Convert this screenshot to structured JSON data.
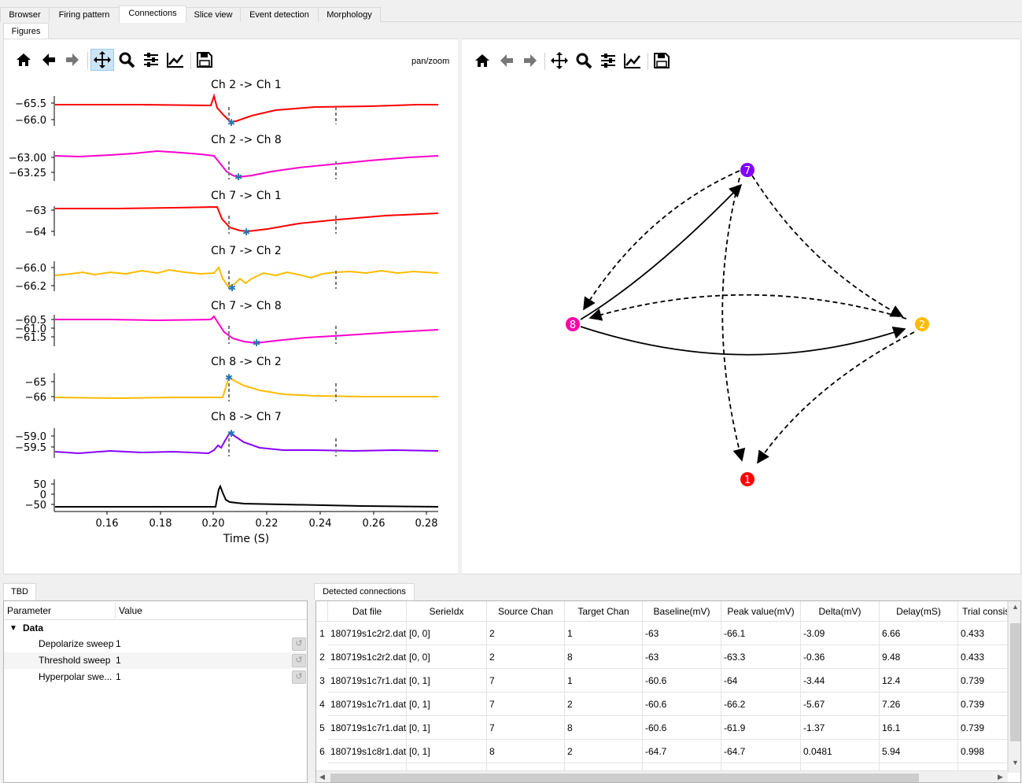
{
  "tabs": [
    "Browser",
    "Firing pattern",
    "Connections",
    "Slice view",
    "Event detection",
    "Morphology"
  ],
  "active_tab": "Connections",
  "subtabs": [
    "Figures"
  ],
  "left_toolbar": {
    "mode_label": "pan/zoom",
    "active_tool": "pan"
  },
  "traces": [
    {
      "title": "Ch 2 -> Ch 1",
      "ticks": [
        "−65.5",
        "−66.0"
      ],
      "color": "#ff0000"
    },
    {
      "title": "Ch 2 -> Ch 8",
      "ticks": [
        "−63.00",
        "−63.25"
      ],
      "color": "#ff00cc"
    },
    {
      "title": "Ch 7 -> Ch 1",
      "ticks": [
        "−63",
        "−64"
      ],
      "color": "#ff0000"
    },
    {
      "title": "Ch 7 -> Ch 2",
      "ticks": [
        "−66.0",
        "−66.2"
      ],
      "color": "#ffbb00"
    },
    {
      "title": "Ch 7 -> Ch 8",
      "ticks": [
        "−60.5",
        "−61.0",
        "−61.5"
      ],
      "color": "#ff00cc"
    },
    {
      "title": "Ch 8 -> Ch 2",
      "ticks": [
        "−65",
        "−66"
      ],
      "color": "#ffbb00"
    },
    {
      "title": "Ch 8 -> Ch 7",
      "ticks": [
        "−59.0",
        "−59.5"
      ],
      "color": "#8800ff"
    },
    {
      "title": "",
      "ticks": [
        "50",
        "0",
        "−50"
      ],
      "color": "#000000"
    }
  ],
  "x_axis": {
    "label": "Time (S)",
    "ticks": [
      "0.16",
      "0.18",
      "0.20",
      "0.22",
      "0.24",
      "0.26",
      "0.28"
    ]
  },
  "network": {
    "nodes": [
      {
        "id": "7",
        "color": "#7f00ff"
      },
      {
        "id": "8",
        "color": "#ff00aa"
      },
      {
        "id": "2",
        "color": "#ffbb00"
      },
      {
        "id": "1",
        "color": "#ff0000"
      }
    ],
    "edges": [
      {
        "from": "2",
        "to": "1",
        "style": "dashed"
      },
      {
        "from": "2",
        "to": "8",
        "style": "dashed"
      },
      {
        "from": "7",
        "to": "1",
        "style": "dashed"
      },
      {
        "from": "7",
        "to": "2",
        "style": "dashed"
      },
      {
        "from": "7",
        "to": "8",
        "style": "dashed"
      },
      {
        "from": "8",
        "to": "2",
        "style": "solid"
      },
      {
        "from": "8",
        "to": "7",
        "style": "solid"
      }
    ]
  },
  "param_panel": {
    "tab": "TBD",
    "headers": [
      "Parameter",
      "Value"
    ],
    "group": "Data",
    "rows": [
      {
        "name": "Depolarize sweep",
        "value": "1"
      },
      {
        "name": "Threshold sweep",
        "value": "1"
      },
      {
        "name": "Hyperpolar swe...",
        "value": "1"
      }
    ]
  },
  "connections": {
    "tab": "Detected connections",
    "headers": [
      "Dat file",
      "SerieIdx",
      "Source Chan",
      "Target Chan",
      "Baseline(mV)",
      "Peak value(mV)",
      "Delta(mV)",
      "Delay(mS)",
      "Trial consis"
    ],
    "rows": [
      [
        "1",
        "180719s1c2r2.dat",
        "[0, 0]",
        "2",
        "1",
        "-63",
        "-66.1",
        "-3.09",
        "6.66",
        "0.433"
      ],
      [
        "2",
        "180719s1c2r2.dat",
        "[0, 0]",
        "2",
        "8",
        "-63",
        "-63.3",
        "-0.36",
        "9.48",
        "0.433"
      ],
      [
        "3",
        "180719s1c7r1.dat",
        "[0, 1]",
        "7",
        "1",
        "-60.6",
        "-64",
        "-3.44",
        "12.4",
        "0.739"
      ],
      [
        "4",
        "180719s1c7r1.dat",
        "[0, 1]",
        "7",
        "2",
        "-60.6",
        "-66.2",
        "-5.67",
        "7.26",
        "0.739"
      ],
      [
        "5",
        "180719s1c7r1.dat",
        "[0, 1]",
        "7",
        "8",
        "-60.6",
        "-61.9",
        "-1.37",
        "16.1",
        "0.739"
      ],
      [
        "6",
        "180719s1c8r1.dat",
        "[0, 1]",
        "8",
        "2",
        "-64.7",
        "-64.7",
        "0.0481",
        "5.94",
        "0.998"
      ]
    ]
  }
}
